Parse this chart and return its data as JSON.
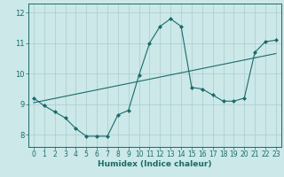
{
  "xlabel": "Humidex (Indice chaleur)",
  "bg_color": "#cce8e8",
  "line_color": "#1a6b6b",
  "grid_color": "#aacccc",
  "x_values": [
    0,
    1,
    2,
    3,
    4,
    5,
    6,
    7,
    8,
    9,
    10,
    11,
    12,
    13,
    14,
    15,
    16,
    17,
    18,
    19,
    20,
    21,
    22,
    23
  ],
  "curve_y": [
    9.2,
    8.95,
    8.75,
    8.55,
    8.2,
    7.95,
    7.95,
    7.95,
    8.65,
    8.8,
    9.95,
    11.0,
    11.55,
    11.8,
    11.55,
    9.55,
    9.5,
    9.3,
    9.1,
    9.1,
    9.2,
    10.7,
    11.05,
    11.1
  ],
  "line_y": [
    9.05,
    9.12,
    9.19,
    9.26,
    9.33,
    9.4,
    9.47,
    9.54,
    9.61,
    9.68,
    9.75,
    9.82,
    9.89,
    9.96,
    10.03,
    10.1,
    10.17,
    10.24,
    10.31,
    10.38,
    10.45,
    10.52,
    10.59,
    10.66
  ],
  "ylim": [
    7.6,
    12.3
  ],
  "yticks": [
    8,
    9,
    10,
    11,
    12
  ],
  "xticks": [
    0,
    1,
    2,
    3,
    4,
    5,
    6,
    7,
    8,
    9,
    10,
    11,
    12,
    13,
    14,
    15,
    16,
    17,
    18,
    19,
    20,
    21,
    22,
    23
  ],
  "marker": "D",
  "markersize": 2.0,
  "linewidth": 0.8,
  "tick_fontsize": 5.5,
  "xlabel_fontsize": 6.5
}
